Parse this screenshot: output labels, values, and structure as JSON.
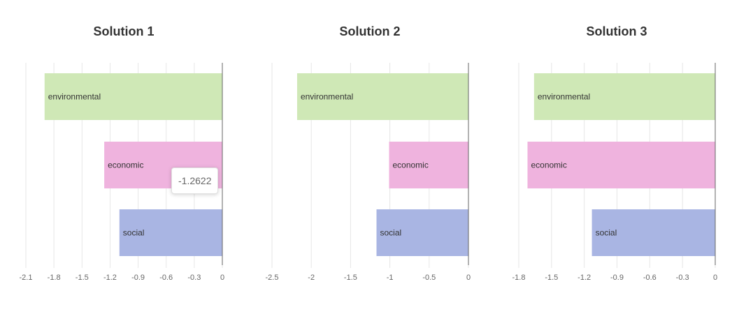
{
  "colors": {
    "environmental": "#cfe8b6",
    "economic": "#efb3de",
    "social": "#a9b5e3",
    "axis": "#666666",
    "grid": "#e6e6e6"
  },
  "tooltip": {
    "value": "-1.2622"
  },
  "chart_data": [
    {
      "type": "bar",
      "orientation": "horizontal",
      "title": "Solution 1",
      "categories": [
        "environmental",
        "economic",
        "social"
      ],
      "values": [
        -1.9,
        -1.2622,
        -1.1
      ],
      "xlim": [
        -2.1,
        0
      ],
      "ticks": [
        "-2.1",
        "-1.8",
        "-1.5",
        "-1.2",
        "-0.9",
        "-0.6",
        "-0.3",
        "0"
      ],
      "tick_values": [
        -2.1,
        -1.8,
        -1.5,
        -1.2,
        -0.9,
        -0.6,
        -0.3,
        0
      ],
      "grid": true
    },
    {
      "type": "bar",
      "orientation": "horizontal",
      "title": "Solution 2",
      "categories": [
        "environmental",
        "economic",
        "social"
      ],
      "values": [
        -2.18,
        -1.01,
        -1.17
      ],
      "xlim": [
        -2.5,
        0
      ],
      "ticks": [
        "-2.5",
        "-2",
        "-1.5",
        "-1",
        "-0.5",
        "0"
      ],
      "tick_values": [
        -2.5,
        -2,
        -1.5,
        -1,
        -0.5,
        0
      ],
      "grid": true
    },
    {
      "type": "bar",
      "orientation": "horizontal",
      "title": "Solution 3",
      "categories": [
        "environmental",
        "economic",
        "social"
      ],
      "values": [
        -1.66,
        -1.72,
        -1.13
      ],
      "xlim": [
        -1.8,
        0
      ],
      "ticks": [
        "-1.8",
        "-1.5",
        "-1.2",
        "-0.9",
        "-0.6",
        "-0.3",
        "0"
      ],
      "tick_values": [
        -1.8,
        -1.5,
        -1.2,
        -0.9,
        -0.6,
        -0.3,
        0
      ],
      "grid": true
    }
  ]
}
